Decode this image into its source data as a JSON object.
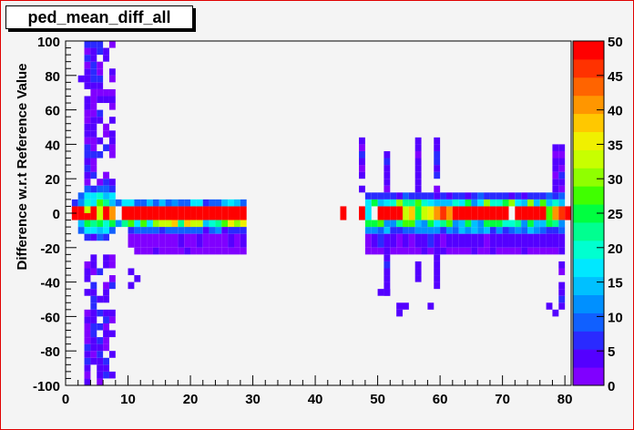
{
  "title": "ped_mean_diff_all",
  "chart_data": {
    "type": "heatmap",
    "title": "ped_mean_diff_all",
    "xlabel": "",
    "ylabel": "Difference w.r.t Reference Value",
    "xlim": [
      0,
      81
    ],
    "ylim": [
      -100,
      100
    ],
    "x_bin_width": 1,
    "y_bin_width": 4,
    "xticks": [
      0,
      10,
      20,
      30,
      40,
      50,
      60,
      70,
      80
    ],
    "yticks": [
      -100,
      -80,
      -60,
      -40,
      -20,
      0,
      20,
      40,
      60,
      80,
      100
    ],
    "zlim": [
      0,
      50
    ],
    "zticks": [
      0,
      5,
      10,
      15,
      20,
      25,
      30,
      35,
      40,
      45,
      50
    ],
    "palette": [
      "#8000ff",
      "#5400ff",
      "#2a2aff",
      "#1060ff",
      "#0090ff",
      "#00c0ff",
      "#00e8ff",
      "#00ffd0",
      "#00ff90",
      "#00ff40",
      "#40ff00",
      "#90ff00",
      "#c8ff00",
      "#f0f000",
      "#ffc800",
      "#ff9600",
      "#ff6400",
      "#ff3200",
      "#ff0000"
    ],
    "grid": false,
    "cells": [
      {
        "x": [
          1,
          2
        ],
        "y": [
          -4,
          4
        ],
        "z": 50
      },
      {
        "x": [
          2,
          3
        ],
        "y": [
          -4,
          4
        ],
        "z": 50
      },
      {
        "x": [
          3,
          4
        ],
        "y": [
          -4,
          0
        ],
        "z": 50
      },
      {
        "x": [
          3,
          4
        ],
        "y": [
          0,
          4
        ],
        "z": 32
      },
      {
        "x": [
          4,
          5
        ],
        "y": [
          -4,
          4
        ],
        "z": 50
      },
      {
        "x": [
          5,
          6
        ],
        "y": [
          -4,
          4
        ],
        "z": 34
      },
      {
        "x": [
          6,
          7
        ],
        "y": [
          -4,
          4
        ],
        "z": 50
      },
      {
        "x": [
          7,
          8
        ],
        "y": [
          -4,
          4
        ],
        "z": 40
      },
      {
        "x": [
          1,
          2
        ],
        "y": [
          4,
          8
        ],
        "z": 6
      },
      {
        "x": [
          2,
          3
        ],
        "y": [
          4,
          8
        ],
        "z": 12
      },
      {
        "x": [
          3,
          4
        ],
        "y": [
          4,
          8
        ],
        "z": 20
      },
      {
        "x": [
          4,
          5
        ],
        "y": [
          4,
          8
        ],
        "z": 18
      },
      {
        "x": [
          5,
          6
        ],
        "y": [
          4,
          8
        ],
        "z": 28
      },
      {
        "x": [
          6,
          7
        ],
        "y": [
          4,
          8
        ],
        "z": 22
      },
      {
        "x": [
          7,
          8
        ],
        "y": [
          4,
          8
        ],
        "z": 14
      },
      {
        "x": [
          8,
          9
        ],
        "y": [
          4,
          8
        ],
        "z": 8
      },
      {
        "x": [
          2,
          3
        ],
        "y": [
          8,
          12
        ],
        "z": 8
      },
      {
        "x": [
          3,
          4
        ],
        "y": [
          8,
          12
        ],
        "z": 18
      },
      {
        "x": [
          4,
          5
        ],
        "y": [
          8,
          12
        ],
        "z": 16
      },
      {
        "x": [
          5,
          6
        ],
        "y": [
          8,
          12
        ],
        "z": 20
      },
      {
        "x": [
          6,
          7
        ],
        "y": [
          8,
          12
        ],
        "z": 14
      },
      {
        "x": [
          7,
          8
        ],
        "y": [
          8,
          12
        ],
        "z": 16
      },
      {
        "x": [
          3,
          4
        ],
        "y": [
          12,
          16
        ],
        "z": 8
      },
      {
        "x": [
          4,
          5
        ],
        "y": [
          12,
          16
        ],
        "z": 6
      },
      {
        "x": [
          5,
          6
        ],
        "y": [
          12,
          16
        ],
        "z": 8
      },
      {
        "x": [
          6,
          7
        ],
        "y": [
          12,
          16
        ],
        "z": 10
      },
      {
        "x": [
          7,
          8
        ],
        "y": [
          12,
          16
        ],
        "z": 6
      },
      {
        "x": [
          2,
          3
        ],
        "y": [
          -8,
          -4
        ],
        "z": 14
      },
      {
        "x": [
          3,
          4
        ],
        "y": [
          -8,
          -4
        ],
        "z": 26
      },
      {
        "x": [
          4,
          5
        ],
        "y": [
          -8,
          -4
        ],
        "z": 22
      },
      {
        "x": [
          5,
          6
        ],
        "y": [
          -8,
          -4
        ],
        "z": 24
      },
      {
        "x": [
          6,
          7
        ],
        "y": [
          -8,
          -4
        ],
        "z": 20
      },
      {
        "x": [
          7,
          8
        ],
        "y": [
          -8,
          -4
        ],
        "z": 24
      },
      {
        "x": [
          8,
          9
        ],
        "y": [
          -8,
          -4
        ],
        "z": 12
      },
      {
        "x": [
          2,
          3
        ],
        "y": [
          -12,
          -8
        ],
        "z": 10
      },
      {
        "x": [
          3,
          4
        ],
        "y": [
          -12,
          -8
        ],
        "z": 18
      },
      {
        "x": [
          4,
          5
        ],
        "y": [
          -12,
          -8
        ],
        "z": 16
      },
      {
        "x": [
          5,
          6
        ],
        "y": [
          -12,
          -8
        ],
        "z": 14
      },
      {
        "x": [
          6,
          7
        ],
        "y": [
          -12,
          -8
        ],
        "z": 16
      },
      {
        "x": [
          7,
          8
        ],
        "y": [
          -12,
          -8
        ],
        "z": 10
      },
      {
        "x": [
          3,
          4
        ],
        "y": [
          -16,
          -12
        ],
        "z": 6
      },
      {
        "x": [
          4,
          5
        ],
        "y": [
          -16,
          -12
        ],
        "z": 4
      },
      {
        "x": [
          5,
          6
        ],
        "y": [
          -16,
          -12
        ],
        "z": 8
      },
      {
        "x": [
          6,
          7
        ],
        "y": [
          -16,
          -12
        ],
        "z": 6
      },
      {
        "x": [
          9,
          29
        ],
        "y": [
          -4,
          4
        ],
        "z": 50
      },
      {
        "x": [
          9,
          29
        ],
        "y": [
          -8,
          -4
        ],
        "z": 28
      },
      {
        "x": [
          9,
          29
        ],
        "y": [
          4,
          8
        ],
        "z": 12
      },
      {
        "x": [
          10,
          29
        ],
        "y": [
          -12,
          -8
        ],
        "z": 8
      },
      {
        "x": [
          10,
          29
        ],
        "y": [
          -20,
          -12
        ],
        "z": 3
      },
      {
        "x": [
          11,
          29
        ],
        "y": [
          -24,
          -20
        ],
        "z": 2
      },
      {
        "x": [
          44,
          45
        ],
        "y": [
          -4,
          4
        ],
        "z": 50
      },
      {
        "x": [
          47,
          48
        ],
        "y": [
          -4,
          4
        ],
        "z": 50
      },
      {
        "x": [
          48,
          49
        ],
        "y": [
          -4,
          4
        ],
        "z": 18
      },
      {
        "x": [
          50,
          54
        ],
        "y": [
          -4,
          4
        ],
        "z": 50
      },
      {
        "x": [
          54,
          58
        ],
        "y": [
          -4,
          4
        ],
        "z": 28
      },
      {
        "x": [
          58,
          62
        ],
        "y": [
          -4,
          4
        ],
        "z": 34
      },
      {
        "x": [
          62,
          70
        ],
        "y": [
          -4,
          4
        ],
        "z": 50
      },
      {
        "x": [
          70,
          71
        ],
        "y": [
          -4,
          4
        ],
        "z": 50
      },
      {
        "x": [
          72,
          77
        ],
        "y": [
          -4,
          4
        ],
        "z": 50
      },
      {
        "x": [
          77,
          79
        ],
        "y": [
          -4,
          4
        ],
        "z": 30
      },
      {
        "x": [
          79,
          80
        ],
        "y": [
          -4,
          4
        ],
        "z": 46
      },
      {
        "x": [
          80,
          81
        ],
        "y": [
          -4,
          4
        ],
        "z": 50
      },
      {
        "x": [
          48,
          80
        ],
        "y": [
          -8,
          -4
        ],
        "z": 20
      },
      {
        "x": [
          48,
          80
        ],
        "y": [
          4,
          8
        ],
        "z": 22
      },
      {
        "x": [
          48,
          80
        ],
        "y": [
          -12,
          -8
        ],
        "z": 10
      },
      {
        "x": [
          48,
          80
        ],
        "y": [
          8,
          12
        ],
        "z": 6
      },
      {
        "x": [
          48,
          80
        ],
        "y": [
          -20,
          -12
        ],
        "z": 4
      },
      {
        "x": [
          48,
          80
        ],
        "y": [
          -24,
          -20
        ],
        "z": 2
      }
    ]
  }
}
